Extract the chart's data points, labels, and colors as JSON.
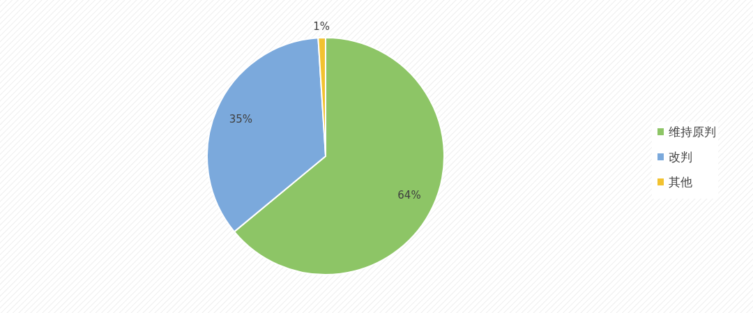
{
  "chart_data": {
    "type": "pie",
    "categories": [
      "维持原判",
      "改判",
      "其他"
    ],
    "values": [
      64,
      35,
      1
    ],
    "colors": [
      "#8dc566",
      "#7ba9dc",
      "#f2c230"
    ],
    "value_labels": [
      "64%",
      "35%",
      "1%"
    ],
    "legend": "right"
  }
}
